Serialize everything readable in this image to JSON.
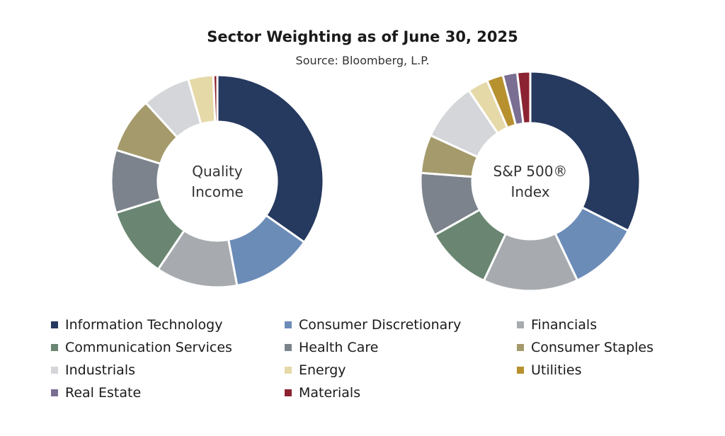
{
  "header": {
    "title": "Sector Weighting as of June 30, 2025",
    "subtitle": "Source: Bloomberg, L.P."
  },
  "colors": {
    "Information Technology": "#26395f",
    "Consumer Discretionary": "#6c8cb8",
    "Financials": "#a7abaf",
    "Communication Services": "#6a8672",
    "Health Care": "#7c838c",
    "Consumer Staples": "#a59a6b",
    "Industrials": "#d4d6d9",
    "Energy": "#e6d9a8",
    "Utilities": "#b8912f",
    "Real Estate": "#7a6e93",
    "Materials": "#8c2332"
  },
  "legend": [
    "Information Technology",
    "Consumer Discretionary",
    "Financials",
    "Communication Services",
    "Health Care",
    "Consumer Staples",
    "Industrials",
    "Energy",
    "Utilities",
    "Real Estate",
    "Materials"
  ],
  "chart_data": [
    {
      "type": "pie",
      "center_label": [
        "Quality",
        "Income"
      ],
      "slices": [
        {
          "category": "Information Technology",
          "value": 34.5
        },
        {
          "category": "Consumer Discretionary",
          "value": 12.2
        },
        {
          "category": "Financials",
          "value": 12.3
        },
        {
          "category": "Communication Services",
          "value": 10.7
        },
        {
          "category": "Health Care",
          "value": 9.5
        },
        {
          "category": "Consumer Staples",
          "value": 8.4
        },
        {
          "category": "Industrials",
          "value": 7.3
        },
        {
          "category": "Energy",
          "value": 3.8
        },
        {
          "category": "Materials",
          "value": 0.6
        }
      ]
    },
    {
      "type": "pie",
      "center_label": [
        "S&P 500®",
        "Index"
      ],
      "slices": [
        {
          "category": "Information Technology",
          "value": 32.2
        },
        {
          "category": "Consumer Discretionary",
          "value": 10.4
        },
        {
          "category": "Financials",
          "value": 13.9
        },
        {
          "category": "Communication Services",
          "value": 9.8
        },
        {
          "category": "Health Care",
          "value": 9.3
        },
        {
          "category": "Consumer Staples",
          "value": 5.6
        },
        {
          "category": "Industrials",
          "value": 8.6
        },
        {
          "category": "Energy",
          "value": 3.0
        },
        {
          "category": "Utilities",
          "value": 2.4
        },
        {
          "category": "Real Estate",
          "value": 2.1
        },
        {
          "category": "Materials",
          "value": 1.9
        }
      ]
    }
  ]
}
